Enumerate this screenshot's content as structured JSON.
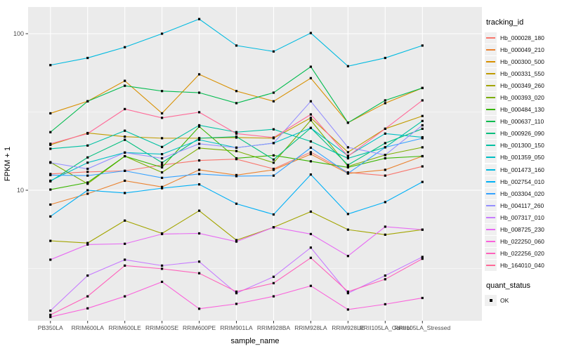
{
  "chart_data": {
    "type": "line",
    "title": "",
    "xlabel": "sample_name",
    "ylabel": "FPKM + 1",
    "y_scale": "log10",
    "y_ticks": [
      100,
      10
    ],
    "ylim": [
      1.46,
      148
    ],
    "grid": true,
    "panel_bg": "#EBEBEB",
    "grid_color": "#FFFFFF",
    "axis_text_color": "#4D4D4D",
    "point_color": "#000000",
    "legend_position": "right",
    "legend_tracking_title": "tracking_id",
    "legend_quant_title": "quant_status",
    "quant_items": [
      {
        "label": "OK",
        "marker": "black-square"
      }
    ],
    "categories": [
      "PB350LA",
      "RRIM600LA",
      "RRIM600LE",
      "RRIM600SE",
      "RRIM600PE",
      "RRIM901LA",
      "RRIM928BA",
      "RRIM928LA",
      "RRIM928LE",
      "RRII105LA_Control",
      "RRII105LA_Stressed"
    ],
    "series": [
      {
        "name": "Hb_000028_180",
        "color": "#F8766D",
        "values": [
          12.7,
          13.1,
          13.3,
          14.5,
          15.5,
          15.8,
          13.7,
          17.5,
          13.0,
          12.4,
          14.2
        ]
      },
      {
        "name": "Hb_000049_210",
        "color": "#EA8331",
        "values": [
          8.1,
          9.5,
          11.5,
          10.5,
          13.5,
          12.5,
          13.5,
          17.0,
          12.8,
          13.5,
          16.5
        ]
      },
      {
        "name": "Hb_000300_500",
        "color": "#D89000",
        "values": [
          31,
          37,
          50,
          31,
          55,
          43,
          37,
          52,
          27,
          36,
          45
        ]
      },
      {
        "name": "Hb_000331_550",
        "color": "#C09B00",
        "values": [
          19.5,
          23.2,
          22,
          21.5,
          21.5,
          21.7,
          21.5,
          29,
          17.5,
          24.7,
          29.8
        ]
      },
      {
        "name": "Hb_000349_260",
        "color": "#A3A500",
        "values": [
          4.75,
          4.6,
          6.4,
          5.3,
          7.4,
          4.8,
          5.8,
          7.3,
          5.6,
          5.2,
          5.6
        ]
      },
      {
        "name": "Hb_000393_020",
        "color": "#7CAE00",
        "values": [
          15.1,
          11,
          16.5,
          13,
          18.6,
          17.8,
          15,
          28,
          14.2,
          16.8,
          18.8
        ]
      },
      {
        "name": "Hb_000484_130",
        "color": "#39B600",
        "values": [
          10.1,
          11.2,
          16.5,
          14,
          25.5,
          16,
          16.7,
          15.3,
          14,
          16,
          16.5
        ]
      },
      {
        "name": "Hb_000637_110",
        "color": "#00BB4E",
        "values": [
          23.5,
          37,
          46.5,
          43,
          42,
          36,
          42,
          61.5,
          27,
          37.5,
          45
        ]
      },
      {
        "name": "Hb_000926_090",
        "color": "#00BF7D",
        "values": [
          11.4,
          16.2,
          21,
          15,
          21.5,
          22,
          15.7,
          25,
          14.5,
          20,
          24.7
        ]
      },
      {
        "name": "Hb_001300_150",
        "color": "#00C1A3",
        "values": [
          18.4,
          19.3,
          24,
          18.9,
          26,
          23.5,
          24.5,
          20.5,
          16,
          18.8,
          27.7
        ]
      },
      {
        "name": "Hb_001359_050",
        "color": "#00BFC4",
        "values": [
          11.5,
          15,
          17.4,
          17,
          21,
          18.7,
          20,
          25,
          16.6,
          23,
          21.8
        ]
      },
      {
        "name": "Hb_001473_160",
        "color": "#00BAE0",
        "values": [
          63,
          70,
          82,
          100,
          124,
          84,
          77,
          101,
          62,
          70,
          84
        ]
      },
      {
        "name": "Hb_002754_010",
        "color": "#00B0F6",
        "values": [
          6.8,
          10,
          9.6,
          10.3,
          10.9,
          8.2,
          7.0,
          12.6,
          7.05,
          8.4,
          11.3
        ]
      },
      {
        "name": "Hb_003304_020",
        "color": "#35A2FF",
        "values": [
          12.5,
          12.4,
          13.3,
          12,
          12.7,
          12.3,
          12.4,
          18.7,
          12.8,
          18.8,
          21.5
        ]
      },
      {
        "name": "Hb_004117_260",
        "color": "#9590FF",
        "values": [
          15,
          13.7,
          17.4,
          16,
          19.8,
          18.7,
          20,
          37,
          18.8,
          16.8,
          26
        ]
      },
      {
        "name": "Hb_007317_010",
        "color": "#C77CFF",
        "values": [
          1.7,
          2.85,
          3.6,
          3.3,
          3.5,
          2.2,
          2.8,
          4.3,
          2.2,
          2.85,
          3.75
        ]
      },
      {
        "name": "Hb_008725_230",
        "color": "#E76BF3",
        "values": [
          3.6,
          4.5,
          4.55,
          5.25,
          5.3,
          4.7,
          5.8,
          5.25,
          3.8,
          5.85,
          5.6
        ]
      },
      {
        "name": "Hb_022250_060",
        "color": "#FA62DB",
        "values": [
          1.55,
          1.76,
          2.1,
          2.6,
          1.75,
          1.88,
          2.1,
          2.45,
          1.73,
          1.87,
          2.05
        ]
      },
      {
        "name": "Hb_022256_020",
        "color": "#FF62BC",
        "values": [
          1.6,
          2.1,
          3.3,
          3.15,
          2.95,
          2.25,
          2.55,
          3.7,
          2.25,
          2.7,
          3.65
        ]
      },
      {
        "name": "Hb_164010_040",
        "color": "#FF6A98",
        "values": [
          19.8,
          23,
          33,
          29,
          31.5,
          23,
          21.7,
          30.5,
          16.5,
          24.7,
          37.5
        ]
      }
    ]
  }
}
